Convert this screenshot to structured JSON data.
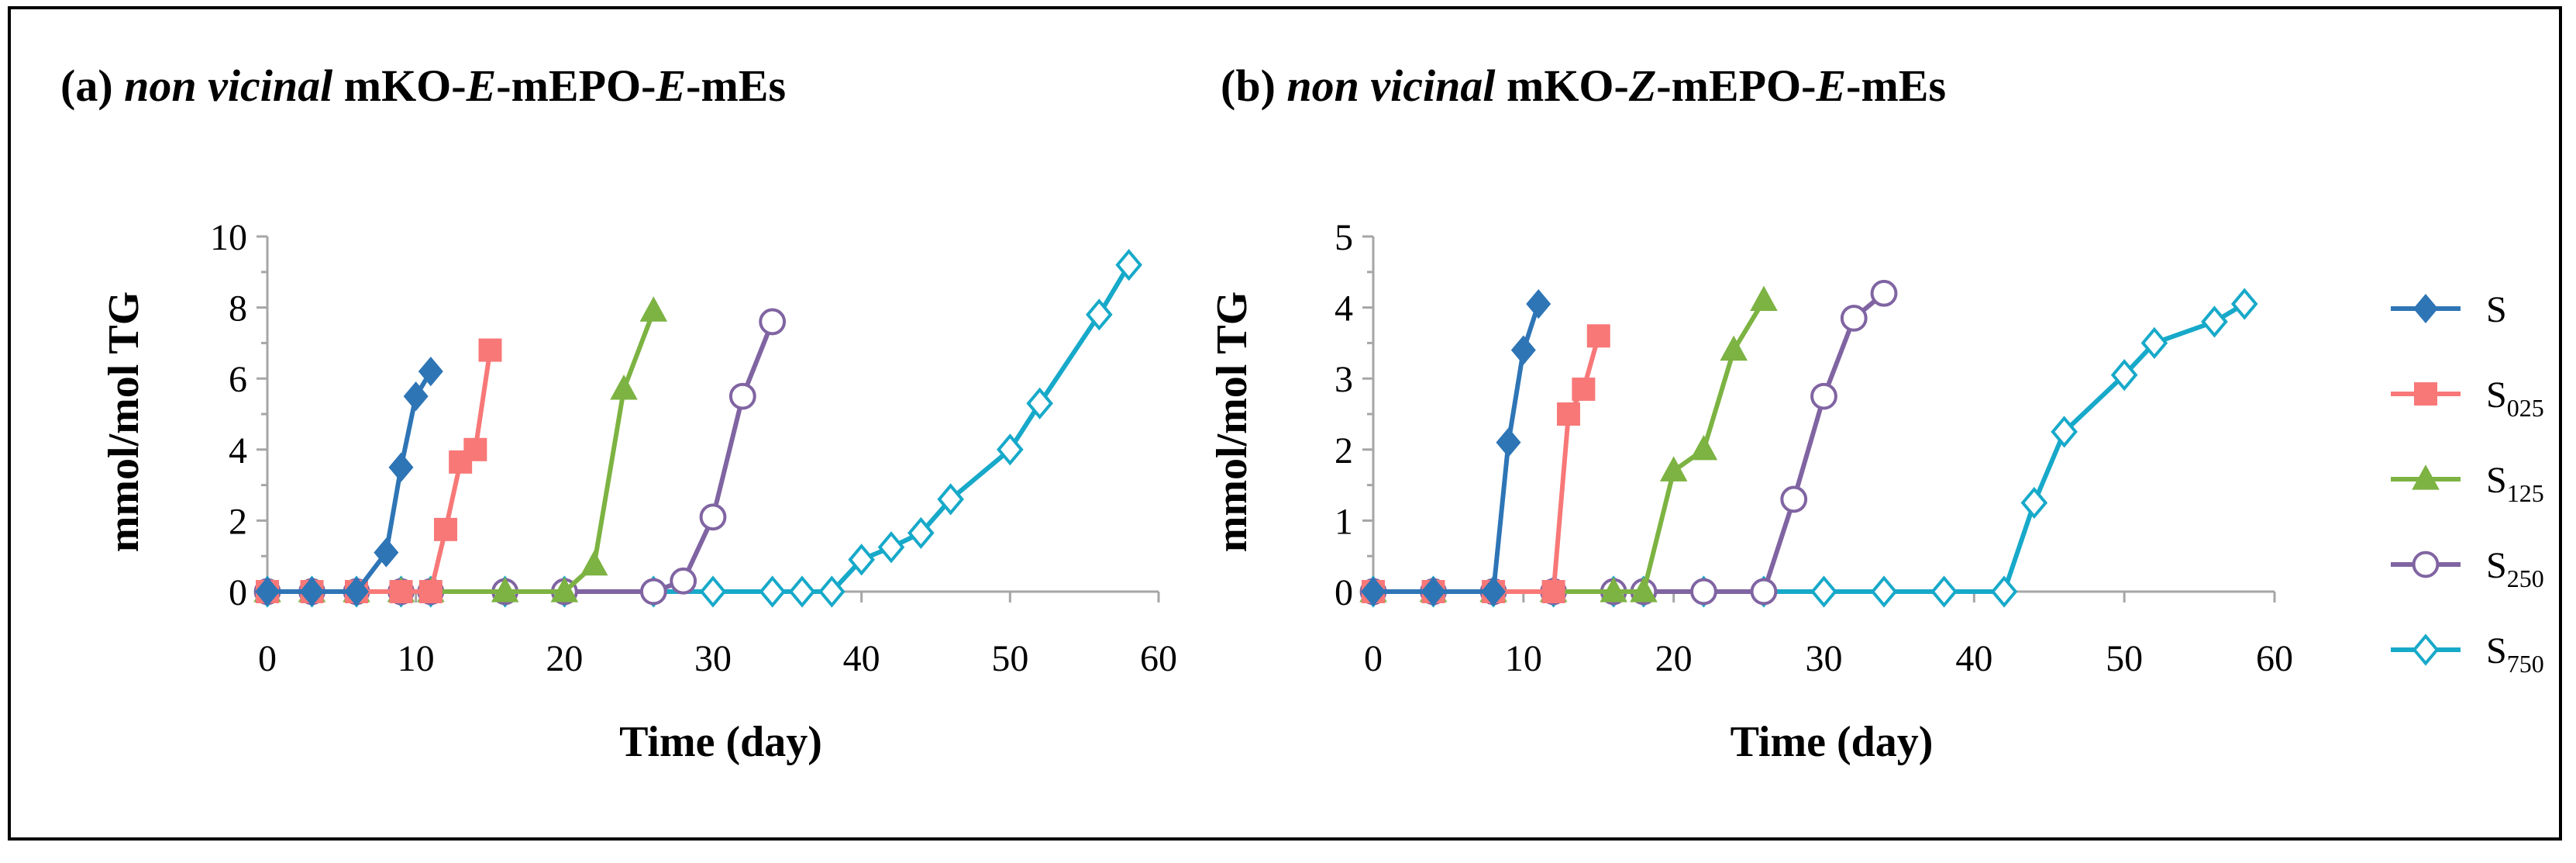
{
  "chart_data": [
    {
      "type": "line",
      "title_parts": [
        "(a) ",
        "non vicinal",
        " mKO-",
        "E",
        "-mEPO-",
        "E",
        "-mEs"
      ],
      "xlabel": "Time (day)",
      "ylabel": "mmol/mol TG",
      "xlim": [
        0,
        60
      ],
      "ylim": [
        0,
        10
      ],
      "xticks": [
        0,
        10,
        20,
        30,
        40,
        50,
        60
      ],
      "yticks": [
        0,
        2,
        4,
        6,
        8,
        10
      ],
      "series": [
        {
          "name": "S",
          "x": [
            0,
            3,
            6,
            8,
            9,
            10,
            11
          ],
          "y": [
            0,
            0,
            0,
            1.1,
            3.5,
            5.5,
            6.2
          ]
        },
        {
          "name": "S025",
          "x": [
            0,
            3,
            6,
            9,
            11,
            12,
            13,
            14,
            15
          ],
          "y": [
            0,
            0,
            0,
            0,
            0,
            1.75,
            3.65,
            4.0,
            6.8
          ]
        },
        {
          "name": "S125",
          "x": [
            0,
            3,
            6,
            9,
            11,
            16,
            20,
            22,
            24,
            26
          ],
          "y": [
            0,
            0,
            0,
            0,
            0,
            0,
            0,
            0.75,
            5.7,
            7.9
          ]
        },
        {
          "name": "S250",
          "x": [
            0,
            3,
            6,
            9,
            11,
            16,
            20,
            26,
            28,
            30,
            32,
            34
          ],
          "y": [
            0,
            0,
            0,
            0,
            0,
            0,
            0,
            0,
            0.3,
            2.1,
            5.5,
            7.6
          ]
        },
        {
          "name": "S750",
          "x": [
            0,
            3,
            6,
            9,
            11,
            16,
            20,
            26,
            30,
            34,
            36,
            38,
            40,
            42,
            44,
            46,
            50,
            52,
            56,
            58
          ],
          "y": [
            0,
            0,
            0,
            0,
            0,
            0,
            0,
            0,
            0,
            0,
            0,
            0,
            0.9,
            1.25,
            1.65,
            2.6,
            4.0,
            5.3,
            7.8,
            9.2
          ]
        }
      ]
    },
    {
      "type": "line",
      "title_parts": [
        "(b) ",
        "non vicinal",
        " mKO-",
        "Z",
        "-mEPO-",
        "E",
        "-mEs"
      ],
      "xlabel": "Time (day)",
      "ylabel": "mmol/mol TG",
      "xlim": [
        0,
        60
      ],
      "ylim": [
        0,
        5
      ],
      "xticks": [
        0,
        10,
        20,
        30,
        40,
        50,
        60
      ],
      "yticks": [
        0,
        1,
        2,
        3,
        4,
        5
      ],
      "series": [
        {
          "name": "S",
          "x": [
            0,
            4,
            8,
            9,
            10,
            11
          ],
          "y": [
            0,
            0,
            0,
            2.1,
            3.4,
            4.05
          ]
        },
        {
          "name": "S025",
          "x": [
            0,
            4,
            8,
            12,
            13,
            14,
            15
          ],
          "y": [
            0,
            0,
            0,
            0,
            2.5,
            2.85,
            3.6
          ]
        },
        {
          "name": "S125",
          "x": [
            0,
            4,
            8,
            12,
            16,
            18,
            20,
            22,
            24,
            26
          ],
          "y": [
            0,
            0,
            0,
            0,
            0,
            0,
            1.7,
            2.0,
            3.4,
            4.1
          ]
        },
        {
          "name": "S250",
          "x": [
            0,
            4,
            8,
            12,
            16,
            18,
            22,
            26,
            28,
            30,
            32,
            34
          ],
          "y": [
            0,
            0,
            0,
            0,
            0,
            0,
            0,
            0,
            1.3,
            2.75,
            3.85,
            4.2
          ]
        },
        {
          "name": "S750",
          "x": [
            0,
            4,
            8,
            12,
            16,
            18,
            22,
            26,
            30,
            34,
            38,
            42,
            44,
            46,
            50,
            52,
            56,
            58
          ],
          "y": [
            0,
            0,
            0,
            0,
            0,
            0,
            0,
            0,
            0,
            0,
            0,
            0,
            1.25,
            2.25,
            3.05,
            3.5,
            3.8,
            4.05
          ]
        }
      ]
    }
  ],
  "legend": {
    "entries": [
      {
        "base": "S",
        "sub": "",
        "color": "#2e75b6",
        "marker": "diamond-filled"
      },
      {
        "base": "S",
        "sub": "025",
        "color": "#f87878",
        "marker": "square-filled"
      },
      {
        "base": "S",
        "sub": "125",
        "color": "#7cb342",
        "marker": "triangle-filled"
      },
      {
        "base": "S",
        "sub": "250",
        "color": "#8064a2",
        "marker": "circle-open"
      },
      {
        "base": "S",
        "sub": "750",
        "color": "#17a9c9",
        "marker": "diamond-open"
      }
    ]
  }
}
